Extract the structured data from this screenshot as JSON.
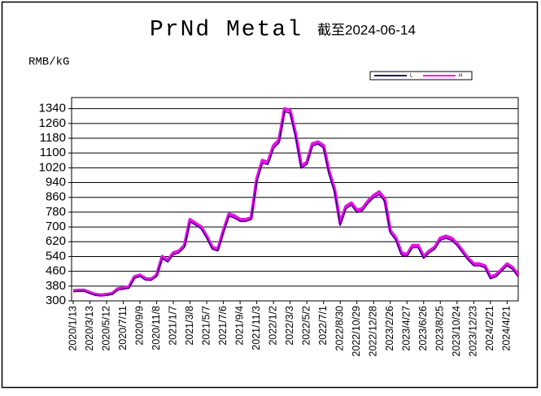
{
  "chart_data": {
    "type": "line",
    "title": "PrNd Metal",
    "subtitle": "截至2024-06-14",
    "y_axis_label": "RMB/kG",
    "categories": [
      "2020/1/13",
      null,
      null,
      "2020/3/13",
      null,
      null,
      "2020/5/12",
      null,
      null,
      "2020/7/11",
      null,
      null,
      "2020/9/9",
      null,
      null,
      "2020/11/8",
      null,
      null,
      "2021/1/7",
      null,
      null,
      "2021/3/8",
      null,
      null,
      "2021/5/7",
      null,
      null,
      "2021/7/6",
      null,
      null,
      "2021/9/4",
      null,
      null,
      "2021/11/3",
      null,
      null,
      "2022/1/2",
      null,
      null,
      "2022/3/3",
      null,
      null,
      "2022/5/2",
      null,
      null,
      "2022/7/1",
      null,
      null,
      "2022/8/30",
      null,
      null,
      "2022/10/29",
      null,
      null,
      "2022/12/28",
      null,
      null,
      "2023/2/26",
      null,
      null,
      "2023/4/27",
      null,
      null,
      "2023/6/26",
      null,
      null,
      "2023/8/25",
      null,
      null,
      "2023/10/24",
      null,
      null,
      "2023/12/23",
      null,
      null,
      "2024/2/21",
      null,
      null,
      "2024/4/21",
      null,
      null
    ],
    "series": [
      {
        "name": "H",
        "color": "#ff00ff",
        "values": [
          355,
          358,
          358,
          345,
          335,
          332,
          335,
          340,
          365,
          370,
          375,
          430,
          440,
          420,
          418,
          440,
          540,
          520,
          560,
          570,
          600,
          740,
          720,
          700,
          650,
          590,
          580,
          680,
          770,
          760,
          740,
          740,
          750,
          960,
          1060,
          1050,
          1140,
          1170,
          1340,
          1330,
          1200,
          1030,
          1050,
          1150,
          1160,
          1140,
          1000,
          900,
          720,
          810,
          830,
          790,
          800,
          840,
          870,
          890,
          850,
          680,
          640,
          560,
          550,
          600,
          600,
          540,
          570,
          590,
          640,
          650,
          640,
          610,
          570,
          530,
          500,
          500,
          490,
          430,
          440,
          470,
          500,
          480,
          440
        ]
      },
      {
        "name": "L",
        "color": "#1a1a66",
        "values": [
          350,
          352,
          352,
          340,
          330,
          327,
          330,
          335,
          358,
          364,
          368,
          422,
          432,
          413,
          411,
          432,
          530,
          510,
          550,
          560,
          590,
          728,
          710,
          690,
          640,
          580,
          570,
          670,
          758,
          748,
          730,
          730,
          740,
          945,
          1045,
          1038,
          1125,
          1155,
          1325,
          1315,
          1185,
          1018,
          1038,
          1138,
          1148,
          1128,
          985,
          888,
          708,
          798,
          818,
          778,
          788,
          828,
          858,
          876,
          838,
          668,
          628,
          548,
          540,
          588,
          588,
          530,
          560,
          580,
          628,
          638,
          628,
          600,
          560,
          520,
          490,
          490,
          480,
          420,
          430,
          460,
          490,
          470,
          430
        ]
      }
    ],
    "ylim": [
      300,
      1400
    ],
    "yticks": [
      300,
      380,
      460,
      540,
      620,
      700,
      780,
      860,
      940,
      1020,
      1100,
      1180,
      1260,
      1340
    ],
    "grid": true
  }
}
